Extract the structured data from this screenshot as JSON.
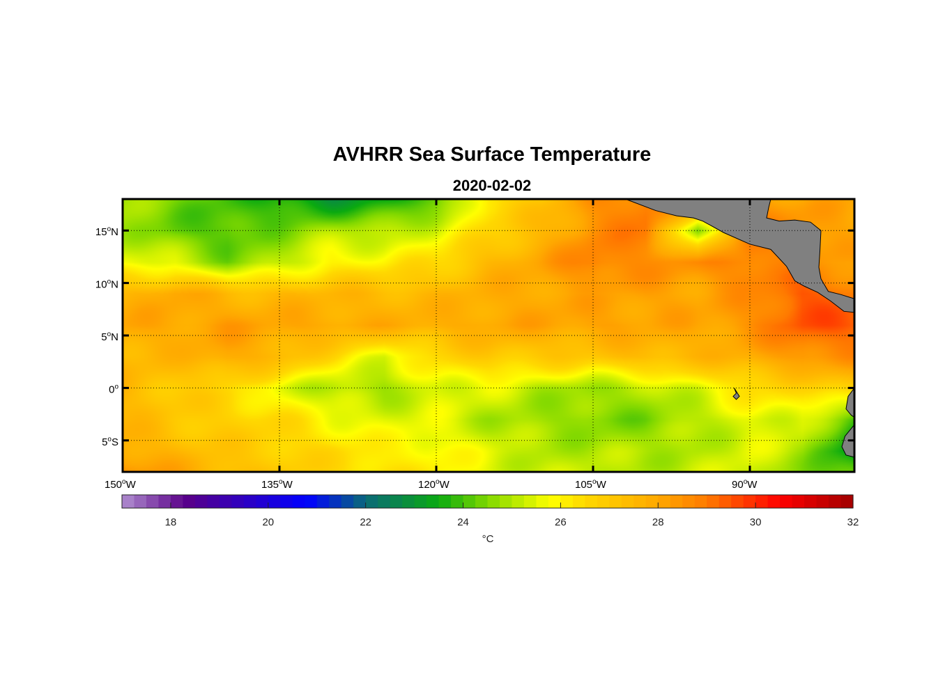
{
  "title": "AVHRR Sea Surface Temperature",
  "subtitle": "2020-02-02",
  "chart_data": {
    "type": "heatmap",
    "variable": "sea surface temperature",
    "units_label": "°C",
    "lon_range": [
      -150,
      -80
    ],
    "lat_range": [
      -8,
      18
    ],
    "lon_ticks": [
      {
        "v": -150,
        "label": "150",
        "hem": "W"
      },
      {
        "v": -135,
        "label": "135",
        "hem": "W"
      },
      {
        "v": -120,
        "label": "120",
        "hem": "W"
      },
      {
        "v": -105,
        "label": "105",
        "hem": "W"
      },
      {
        "v": -90,
        "label": "90",
        "hem": "W"
      }
    ],
    "lat_ticks": [
      {
        "v": 15,
        "label": "15",
        "hem": "N"
      },
      {
        "v": 10,
        "label": "10",
        "hem": "N"
      },
      {
        "v": 5,
        "label": "5",
        "hem": "N"
      },
      {
        "v": 0,
        "label": "0",
        "hem": ""
      },
      {
        "v": -5,
        "label": "5",
        "hem": "S"
      }
    ],
    "grid": "dotted",
    "colorbar": {
      "range": [
        17,
        32
      ],
      "ticks": [
        18,
        20,
        22,
        24,
        26,
        28,
        30,
        32
      ],
      "placement": "bottom"
    },
    "grid_lons": [
      -150,
      -145,
      -140,
      -135,
      -130,
      -125,
      -120,
      -115,
      -110,
      -105,
      -100,
      -95,
      -90,
      -85,
      -80
    ],
    "grid_lats": [
      18,
      15,
      12,
      9,
      6,
      3,
      0,
      -3,
      -6,
      -8
    ],
    "values": [
      [
        24.8,
        24.5,
        24.0,
        23.5,
        23.0,
        23.5,
        24.0,
        26.5,
        27.0,
        28.5,
        29.0,
        29.0,
        28.5,
        28.0,
        28.0
      ],
      [
        25.0,
        24.2,
        24.0,
        24.5,
        25.0,
        25.0,
        25.5,
        26.5,
        27.5,
        28.5,
        29.0,
        24.5,
        29.0,
        28.5,
        28.0
      ],
      [
        25.5,
        25.5,
        24.5,
        25.0,
        26.0,
        26.0,
        26.5,
        27.5,
        28.0,
        29.0,
        28.5,
        28.5,
        29.0,
        28.5,
        28.0
      ],
      [
        27.5,
        28.0,
        27.5,
        27.5,
        27.5,
        27.5,
        27.5,
        27.8,
        28.0,
        28.0,
        28.2,
        28.0,
        28.5,
        29.5,
        29.0
      ],
      [
        28.0,
        28.0,
        28.2,
        28.0,
        28.0,
        27.8,
        27.8,
        28.0,
        28.0,
        28.2,
        28.0,
        28.0,
        28.5,
        29.5,
        29.5
      ],
      [
        27.5,
        27.5,
        28.0,
        27.5,
        26.5,
        25.5,
        26.5,
        27.0,
        27.0,
        27.0,
        27.5,
        27.5,
        27.8,
        28.5,
        28.5
      ],
      [
        27.5,
        27.0,
        26.5,
        25.5,
        25.0,
        24.8,
        25.5,
        25.5,
        25.0,
        24.8,
        25.0,
        25.5,
        26.5,
        26.5,
        27.0
      ],
      [
        27.5,
        27.0,
        26.8,
        26.5,
        25.8,
        25.5,
        25.5,
        25.0,
        24.8,
        24.5,
        24.5,
        25.0,
        25.5,
        25.5,
        24.0
      ],
      [
        28.0,
        27.5,
        27.0,
        26.8,
        26.5,
        26.0,
        26.0,
        25.5,
        25.0,
        25.0,
        25.0,
        25.0,
        25.5,
        25.0,
        23.0
      ],
      [
        28.5,
        28.0,
        27.5,
        27.0,
        26.5,
        26.5,
        26.0,
        25.5,
        25.2,
        25.2,
        25.0,
        25.2,
        25.5,
        24.5,
        24.0
      ]
    ],
    "land": [
      [
        [
          -101.9,
          18
        ],
        [
          -99,
          16.9
        ],
        [
          -97,
          16.4
        ],
        [
          -95.4,
          16.2
        ],
        [
          -94.5,
          15.9
        ],
        [
          -92.5,
          14.8
        ],
        [
          -90,
          13.7
        ],
        [
          -88,
          13.2
        ],
        [
          -86.5,
          11.6
        ],
        [
          -85.7,
          10.2
        ],
        [
          -84.8,
          9.7
        ],
        [
          -83.5,
          9.1
        ],
        [
          -82.3,
          8.3
        ],
        [
          -81,
          7.3
        ],
        [
          -80,
          7.2
        ],
        [
          -80,
          8.5
        ],
        [
          -81.3,
          8.9
        ],
        [
          -82.5,
          9.2
        ],
        [
          -83.2,
          10.4
        ],
        [
          -83.4,
          11.5
        ],
        [
          -83.3,
          13.0
        ],
        [
          -83.2,
          15.0
        ],
        [
          -84.2,
          15.8
        ],
        [
          -85.7,
          16.0
        ],
        [
          -87.2,
          15.9
        ],
        [
          -88.4,
          16.2
        ],
        [
          -88.2,
          17.2
        ],
        [
          -88.0,
          18
        ]
      ],
      [
        [
          -91.5,
          0
        ],
        [
          -91.0,
          -0.8
        ],
        [
          -91.3,
          -1.1
        ],
        [
          -91.6,
          -0.8
        ],
        [
          -91.3,
          -0.5
        ]
      ],
      [
        [
          -80,
          0
        ],
        [
          -80.6,
          -0.8
        ],
        [
          -80.8,
          -2.0
        ],
        [
          -80.3,
          -2.6
        ],
        [
          -80,
          -2.8
        ]
      ],
      [
        [
          -80,
          -3.5
        ],
        [
          -80.9,
          -4.6
        ],
        [
          -81.2,
          -5.6
        ],
        [
          -80.8,
          -6.4
        ],
        [
          -80,
          -6.6
        ]
      ]
    ]
  }
}
